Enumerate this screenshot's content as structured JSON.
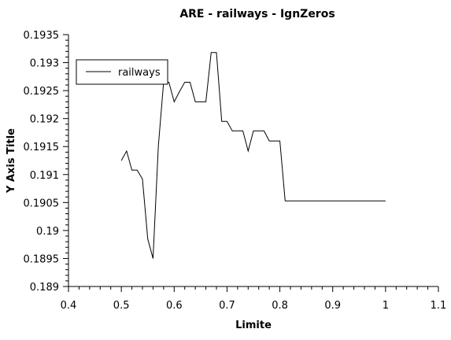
{
  "chart_data": {
    "type": "line",
    "title": "ARE - railways - IgnZeros",
    "xlabel": "Limite",
    "ylabel": "Y Axis Title",
    "xlim": [
      0.4,
      1.1
    ],
    "ylim": [
      0.189,
      0.1935
    ],
    "xticks": [
      "0.4",
      "0.5",
      "0.6",
      "0.7",
      "0.8",
      "0.9",
      "1",
      "1.1"
    ],
    "yticks": [
      "0.189",
      "0.1895",
      "0.19",
      "0.1905",
      "0.191",
      "0.1915",
      "0.192",
      "0.1925",
      "0.193",
      "0.1935"
    ],
    "grid": false,
    "legend_position": "top-left",
    "series": [
      {
        "name": "railways",
        "color": "#000000",
        "points": [
          [
            0.5,
            0.19125
          ],
          [
            0.51,
            0.19142
          ],
          [
            0.52,
            0.19108
          ],
          [
            0.53,
            0.19108
          ],
          [
            0.54,
            0.19092
          ],
          [
            0.55,
            0.18985
          ],
          [
            0.56,
            0.1895
          ],
          [
            0.57,
            0.1915
          ],
          [
            0.58,
            0.19265
          ],
          [
            0.59,
            0.19265
          ],
          [
            0.6,
            0.1923
          ],
          [
            0.61,
            0.19248
          ],
          [
            0.62,
            0.19265
          ],
          [
            0.63,
            0.19265
          ],
          [
            0.64,
            0.1923
          ],
          [
            0.65,
            0.1923
          ],
          [
            0.66,
            0.1923
          ],
          [
            0.67,
            0.19318
          ],
          [
            0.68,
            0.19318
          ],
          [
            0.69,
            0.19195
          ],
          [
            0.7,
            0.19195
          ],
          [
            0.71,
            0.19178
          ],
          [
            0.72,
            0.19178
          ],
          [
            0.73,
            0.19178
          ],
          [
            0.74,
            0.19142
          ],
          [
            0.75,
            0.19178
          ],
          [
            0.76,
            0.19178
          ],
          [
            0.77,
            0.19178
          ],
          [
            0.78,
            0.1916
          ],
          [
            0.79,
            0.1916
          ],
          [
            0.8,
            0.1916
          ],
          [
            0.81,
            0.19053
          ],
          [
            0.9,
            0.19053
          ],
          [
            1.0,
            0.19053
          ]
        ]
      }
    ]
  }
}
